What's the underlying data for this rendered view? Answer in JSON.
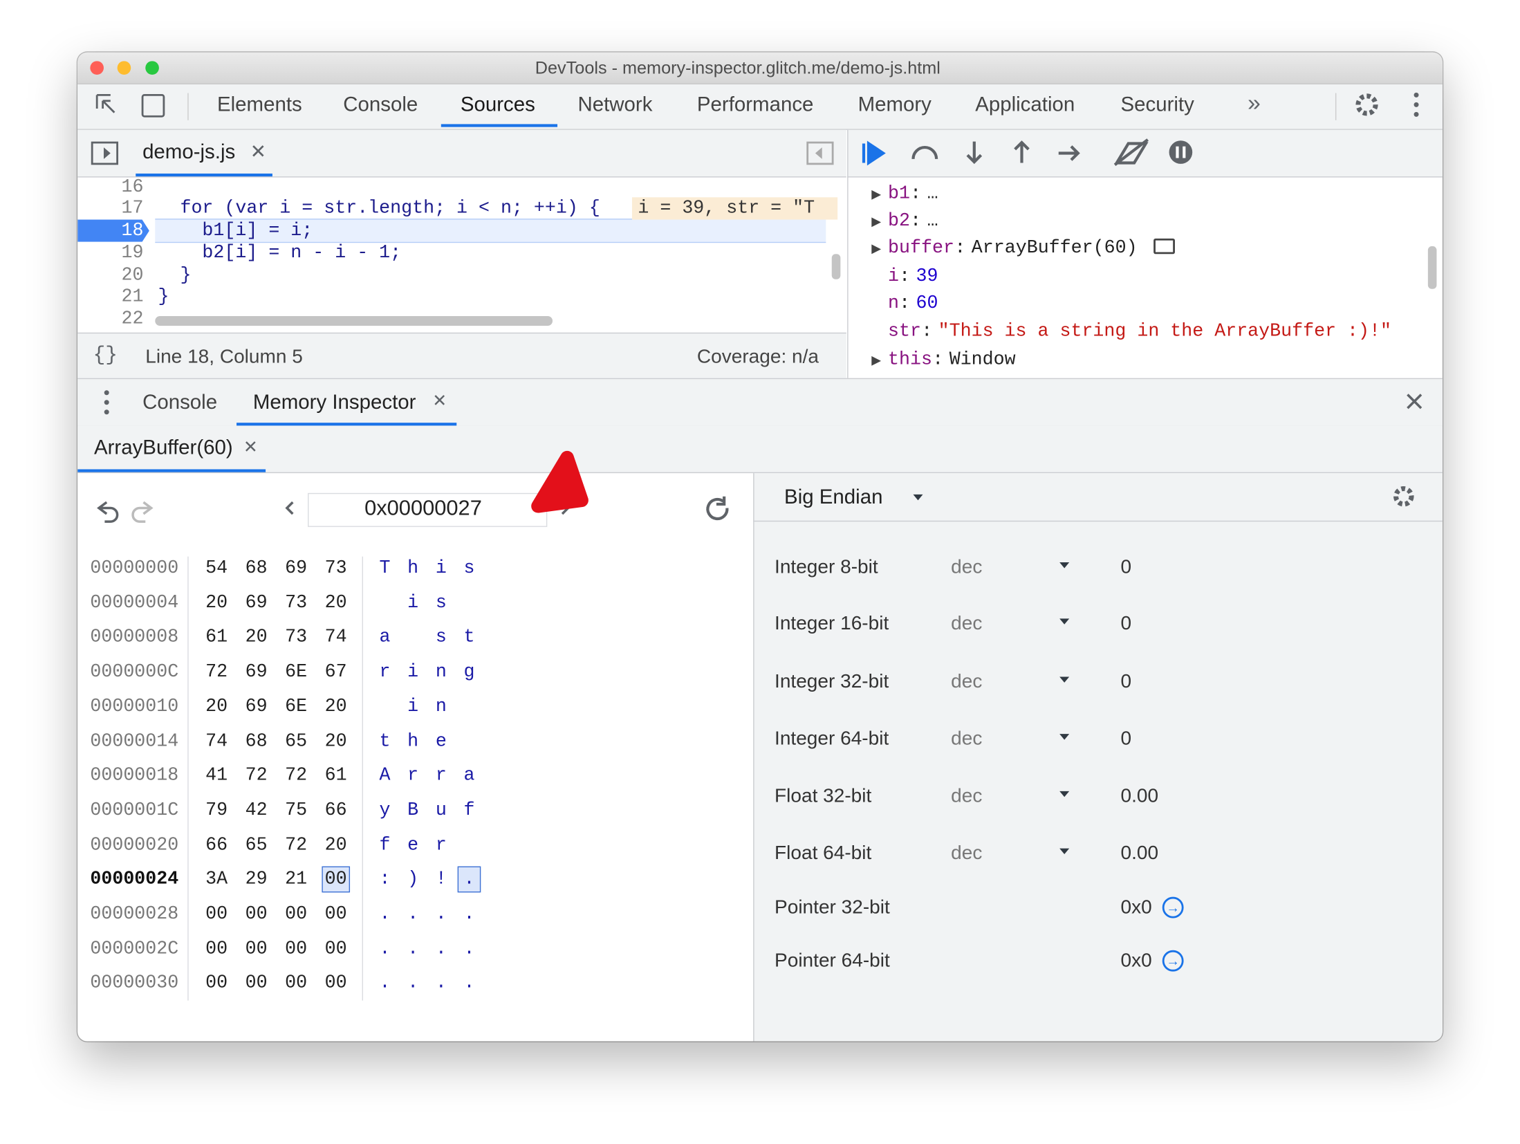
{
  "window": {
    "title": "DevTools - memory-inspector.glitch.me/demo-js.html"
  },
  "toolbar": {
    "tabs": [
      "Elements",
      "Console",
      "Sources",
      "Network",
      "Performance",
      "Memory",
      "Application",
      "Security"
    ],
    "more": "»"
  },
  "sources": {
    "file_tab": "demo-js.js",
    "code": [
      {
        "line": 16,
        "text": ""
      },
      {
        "line": 17,
        "text": "  for (var i = str.length; i < n; ++i) {",
        "hint": "i = 39, str = \"T"
      },
      {
        "line": 18,
        "text": "    b1[i] = i;"
      },
      {
        "line": 19,
        "text": "    b2[i] = n - i - 1;"
      },
      {
        "line": 20,
        "text": "  }"
      },
      {
        "line": 21,
        "text": "}"
      },
      {
        "line": 22,
        "text": ""
      }
    ],
    "status": {
      "braces": "{}",
      "position": "Line 18, Column 5",
      "coverage": "Coverage: n/a"
    }
  },
  "scope": [
    {
      "name": "b1",
      "value": "…",
      "expandable": true
    },
    {
      "name": "b2",
      "value": "…",
      "expandable": true
    },
    {
      "name": "buffer",
      "value": "ArrayBuffer(60)",
      "expandable": true
    },
    {
      "name": "i",
      "value": "39",
      "kind": "number"
    },
    {
      "name": "n",
      "value": "60",
      "kind": "number"
    },
    {
      "name": "str",
      "value": "\"This is a string in the ArrayBuffer :)!\"",
      "kind": "string"
    },
    {
      "name": "this",
      "value": "Window",
      "expandable": true
    }
  ],
  "drawer": {
    "tabs": [
      "Console",
      "Memory Inspector"
    ]
  },
  "memory": {
    "buffer_tab": "ArrayBuffer(60)",
    "address": "0x00000027",
    "rows": [
      {
        "address": "00000000",
        "bytes": [
          "54",
          "68",
          "69",
          "73"
        ],
        "ascii": "This"
      },
      {
        "address": "00000004",
        "bytes": [
          "20",
          "69",
          "73",
          "20"
        ],
        "ascii": " is "
      },
      {
        "address": "00000008",
        "bytes": [
          "61",
          "20",
          "73",
          "74"
        ],
        "ascii": "a st"
      },
      {
        "address": "0000000C",
        "bytes": [
          "72",
          "69",
          "6E",
          "67"
        ],
        "ascii": "ring"
      },
      {
        "address": "00000010",
        "bytes": [
          "20",
          "69",
          "6E",
          "20"
        ],
        "ascii": " in "
      },
      {
        "address": "00000014",
        "bytes": [
          "74",
          "68",
          "65",
          "20"
        ],
        "ascii": "the "
      },
      {
        "address": "00000018",
        "bytes": [
          "41",
          "72",
          "72",
          "61"
        ],
        "ascii": "Arra"
      },
      {
        "address": "0000001C",
        "bytes": [
          "79",
          "42",
          "75",
          "66"
        ],
        "ascii": "yBuf"
      },
      {
        "address": "00000020",
        "bytes": [
          "66",
          "65",
          "72",
          "20"
        ],
        "ascii": "fer "
      },
      {
        "address": "00000024",
        "bytes": [
          "3A",
          "29",
          "21",
          "00"
        ],
        "ascii": ":)!.",
        "selected": 3
      },
      {
        "address": "00000028",
        "bytes": [
          "00",
          "00",
          "00",
          "00"
        ],
        "ascii": "...."
      },
      {
        "address": "0000002C",
        "bytes": [
          "00",
          "00",
          "00",
          "00"
        ],
        "ascii": "...."
      },
      {
        "address": "00000030",
        "bytes": [
          "00",
          "00",
          "00",
          "00"
        ],
        "ascii": "...."
      }
    ],
    "endianness": "Big Endian",
    "values": [
      {
        "label": "Integer 8-bit",
        "format": "dec",
        "value": "0"
      },
      {
        "label": "Integer 16-bit",
        "format": "dec",
        "value": "0"
      },
      {
        "label": "Integer 32-bit",
        "format": "dec",
        "value": "0"
      },
      {
        "label": "Integer 64-bit",
        "format": "dec",
        "value": "0"
      },
      {
        "label": "Float 32-bit",
        "format": "dec",
        "value": "0.00"
      },
      {
        "label": "Float 64-bit",
        "format": "dec",
        "value": "0.00"
      },
      {
        "label": "Pointer 32-bit",
        "value": "0x0"
      },
      {
        "label": "Pointer 64-bit",
        "value": "0x0"
      }
    ]
  }
}
